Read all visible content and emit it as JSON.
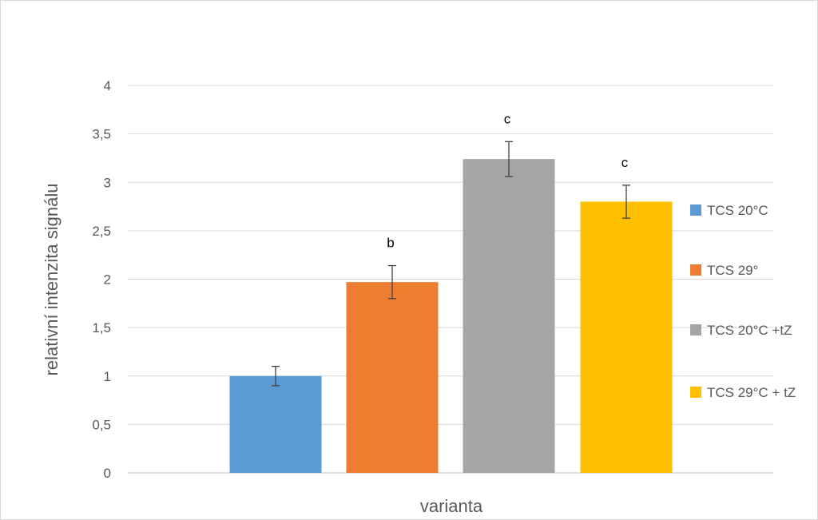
{
  "chart_data": {
    "type": "bar",
    "xlabel": "varianta",
    "ylabel": "relativní intenzita signálu",
    "ylim": [
      0,
      4
    ],
    "yticks": [
      0,
      0.5,
      1,
      1.5,
      2,
      2.5,
      3,
      3.5,
      4
    ],
    "ytick_labels": [
      "0",
      "0,5",
      "1",
      "1,5",
      "2",
      "2,5",
      "3",
      "3,5",
      "4"
    ],
    "grid": true,
    "legend_position": "right",
    "series": [
      {
        "name": "TCS 20°C",
        "value": 1.0,
        "error": 0.1,
        "color": "#5b9bd5",
        "significance": ""
      },
      {
        "name": "TCS 29°",
        "value": 1.97,
        "error": 0.17,
        "color": "#ed7d31",
        "significance": "b"
      },
      {
        "name": "TCS 20°C +tZ",
        "value": 3.24,
        "error": 0.18,
        "color": "#a5a5a5",
        "significance": "c"
      },
      {
        "name": "TCS 29°C + tZ",
        "value": 2.8,
        "error": 0.17,
        "color": "#ffc000",
        "significance": "c"
      }
    ]
  }
}
